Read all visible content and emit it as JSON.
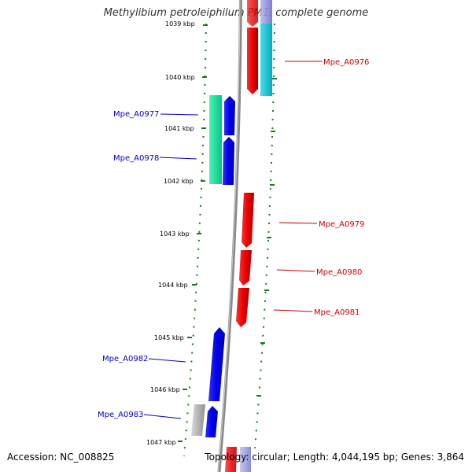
{
  "title": "Methylibium petroleiphilum PM1, complete genome",
  "accession": "Accession: NC_008825",
  "summary": "Topology: circular; Length: 4,044,195 bp; Genes: 3,864",
  "kbp_labels": [
    "1039 kbp",
    "1040 kbp",
    "1041 kbp",
    "1042 kbp",
    "1043 kbp",
    "1044 kbp",
    "1045 kbp",
    "1046 kbp",
    "1047 kbp"
  ],
  "genes": [
    {
      "name": "Mpe_A0976",
      "strand": "forward",
      "color": "#e01010"
    },
    {
      "name": "Mpe_A0977",
      "strand": "reverse",
      "color": "#1010e0"
    },
    {
      "name": "Mpe_A0978",
      "strand": "reverse",
      "color": "#1010e0"
    },
    {
      "name": "Mpe_A0979",
      "strand": "forward",
      "color": "#e01010"
    },
    {
      "name": "Mpe_A0980",
      "strand": "forward",
      "color": "#e01010"
    },
    {
      "name": "Mpe_A0981",
      "strand": "forward",
      "color": "#e01010"
    },
    {
      "name": "Mpe_A0982",
      "strand": "reverse",
      "color": "#1010e0"
    },
    {
      "name": "Mpe_A0983",
      "strand": "reverse",
      "color": "#1010e0"
    }
  ],
  "colors": {
    "forward": "#e01010",
    "reverse": "#1010e0",
    "forward_label": "#cc0000",
    "reverse_label": "#0000cc",
    "tick": "#1a7a1a",
    "axis": "#888888",
    "cyan_feature": "#20c8d8",
    "green_feature": "#20e8a0",
    "gray_feature": "#b0b0b0",
    "violet_feature": "#9090d8"
  }
}
